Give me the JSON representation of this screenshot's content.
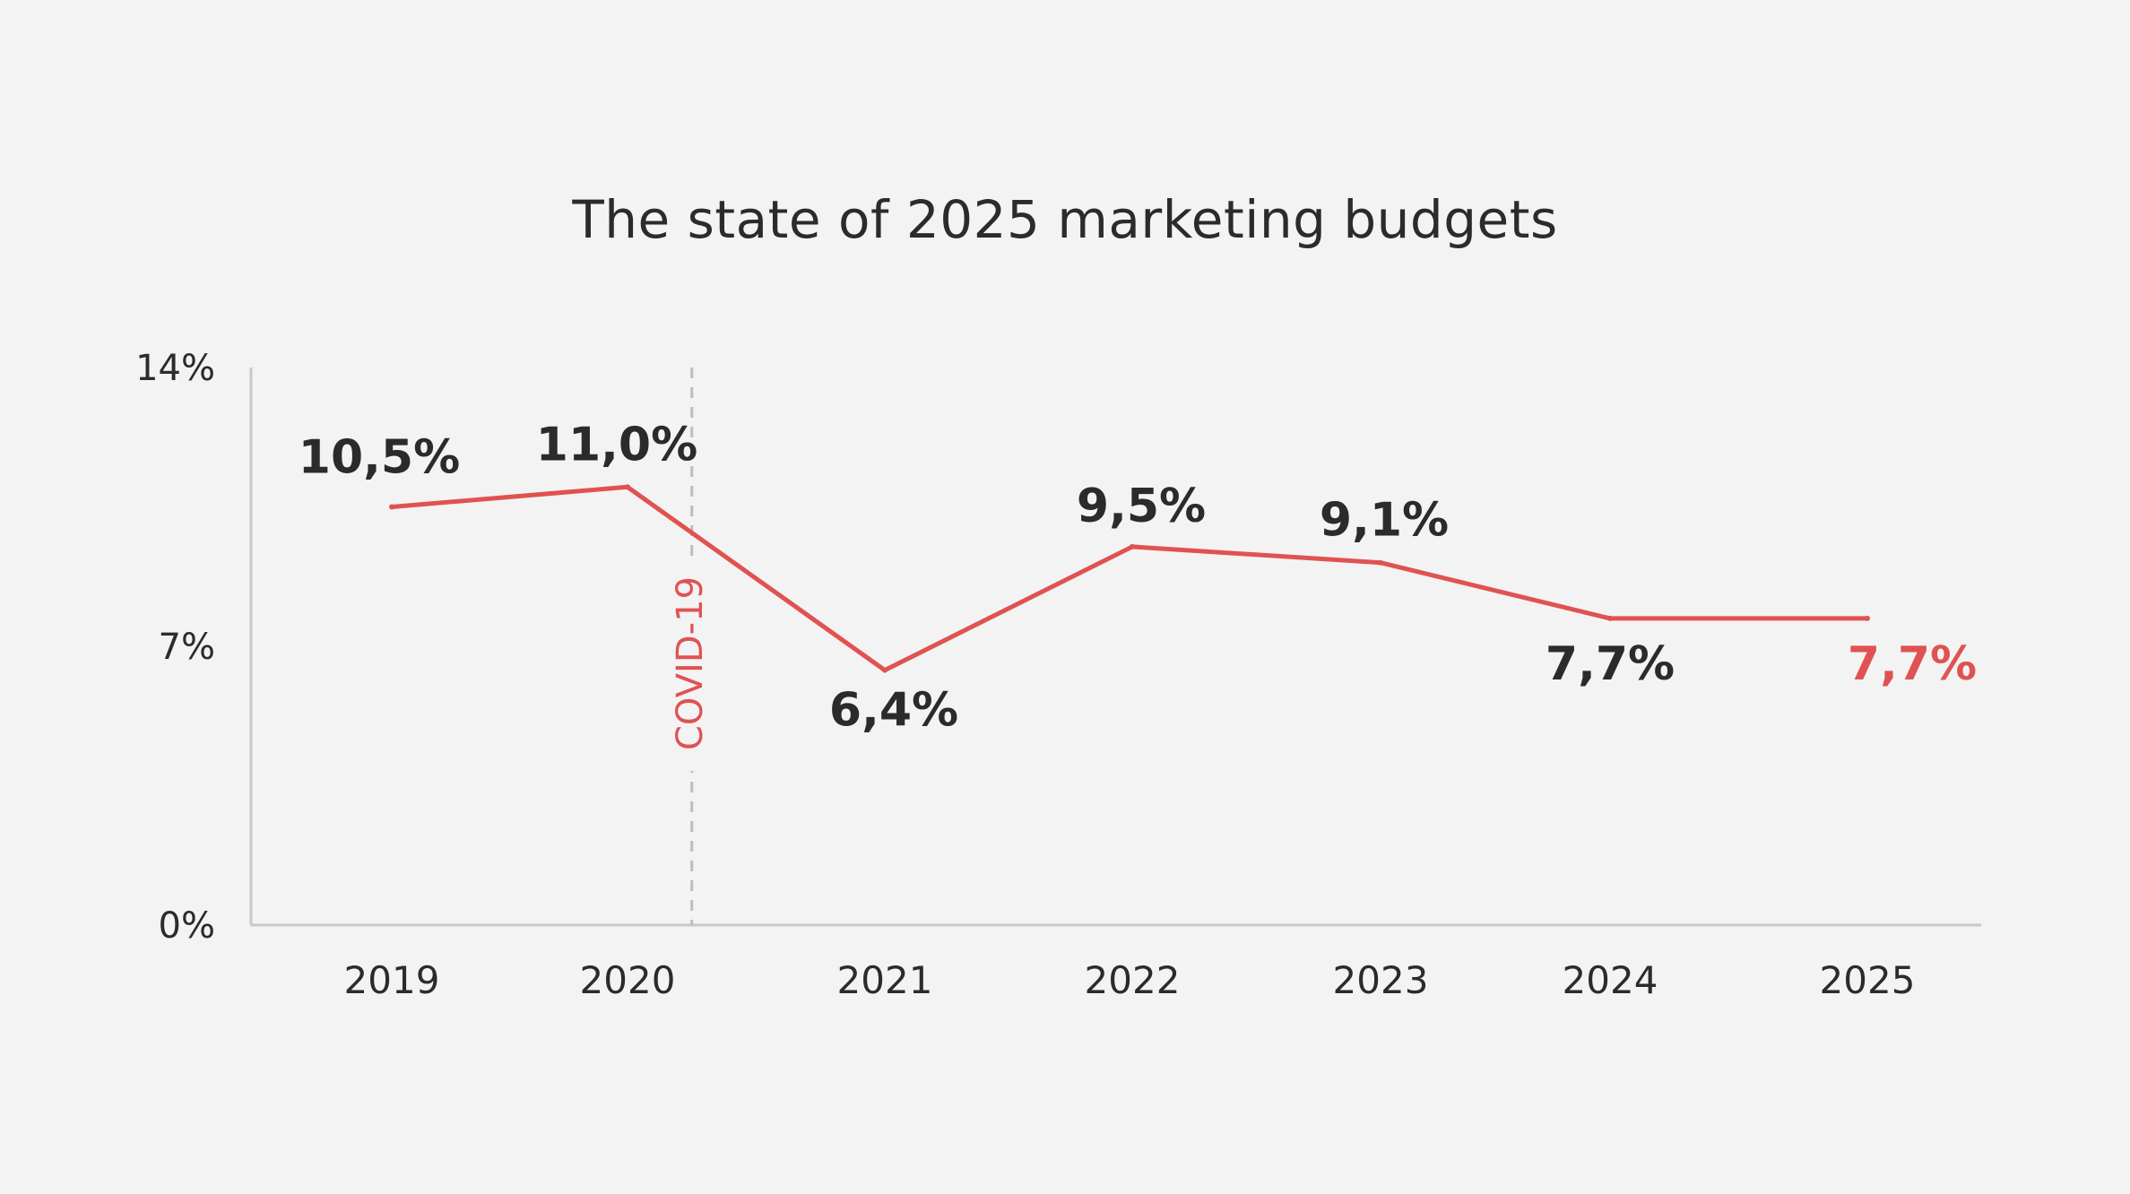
{
  "colors": {
    "background": "#f3f3f3",
    "line": "#e05252",
    "text": "#2b2b2b",
    "axis": "#c8c8c8",
    "highlight": "#e05252",
    "annotation_line": "#bdbdbd"
  },
  "chart_data": {
    "type": "line",
    "title": "The state of 2025 marketing budgets",
    "xlabel": "",
    "ylabel": "",
    "categories": [
      "2019",
      "2020",
      "2021",
      "2022",
      "2023",
      "2024",
      "2025"
    ],
    "series": [
      {
        "values": [
          10.5,
          11.0,
          6.4,
          9.5,
          9.1,
          7.7,
          7.7
        ],
        "labels": [
          "10,5%",
          "11,0%",
          "6,4%",
          "9,5%",
          "9,1%",
          "7,7%",
          "7,7%"
        ],
        "label_positions": [
          "above",
          "above",
          "below",
          "above",
          "above",
          "below",
          "below"
        ],
        "highlight_last": true
      }
    ],
    "ylim": [
      0,
      14
    ],
    "yticks": [
      {
        "value": 0,
        "label": "0%"
      },
      {
        "value": 7,
        "label": "7%"
      },
      {
        "value": 14,
        "label": "14%"
      }
    ],
    "grid": false,
    "legend": "none",
    "annotations": [
      {
        "type": "vertical_line",
        "x_between": [
          "2020",
          "2021"
        ],
        "fraction": 0.25,
        "text": "COVID-19",
        "style": "dashed"
      }
    ]
  }
}
